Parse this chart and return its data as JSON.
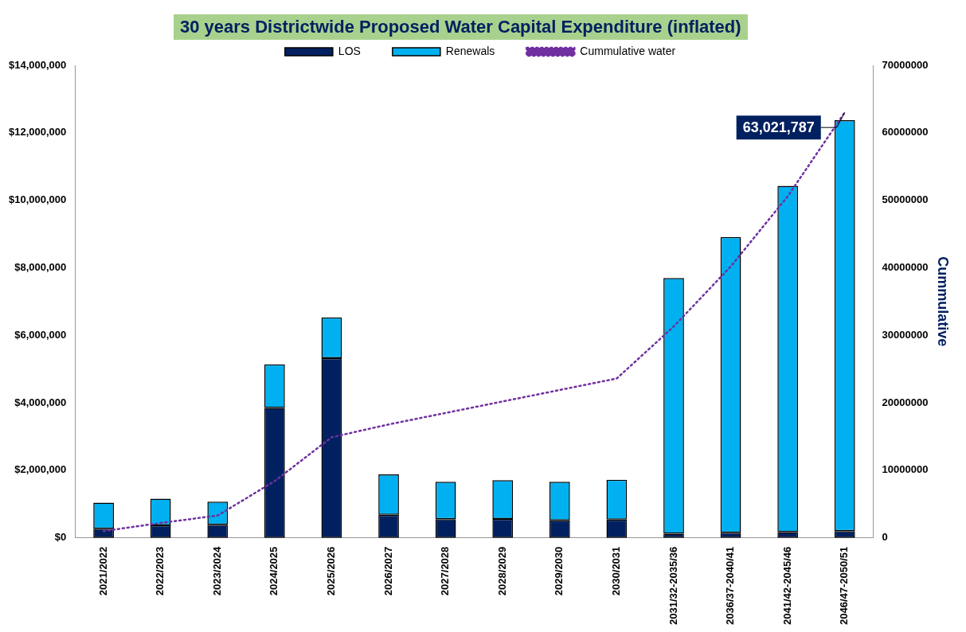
{
  "chart_data": {
    "type": "bar",
    "title": "30 years Districtwide Proposed Water Capital Expenditure (inflated)",
    "y2label": "Cummulative",
    "categories": [
      "2021/2022",
      "2022/2023",
      "2023/2024",
      "2024/2025",
      "2025/2026",
      "2026/2027",
      "2027/2028",
      "2028/2029",
      "2029/2030",
      "2030/2031",
      "2031/32-2035/36",
      "2036/37-2040/41",
      "2041/42-2045/46",
      "2046/47-2050/51"
    ],
    "stacked": true,
    "series": [
      {
        "name": "LOS",
        "color": "#002060",
        "values": [
          270000,
          370000,
          390000,
          3850000,
          5320000,
          680000,
          550000,
          560000,
          520000,
          540000,
          120000,
          150000,
          170000,
          200000
        ]
      },
      {
        "name": "Renewals",
        "color": "#00b0f0",
        "values": [
          770000,
          790000,
          680000,
          1290000,
          1210000,
          1200000,
          1110000,
          1150000,
          1140000,
          1180000,
          7580000,
          8760000,
          10260000,
          12170000
        ]
      },
      {
        "name": "Cummulative water",
        "type": "line",
        "axis": "y2",
        "color": "#7030a0",
        "line_style": "dotted",
        "marker": "none",
        "values": [
          1000000,
          2200000,
          3300000,
          8400000,
          14900000,
          16800000,
          18500000,
          20200000,
          21900000,
          23600000,
          31300000,
          40200000,
          50600000,
          63021787
        ],
        "value_labels": [
          null,
          null,
          null,
          null,
          null,
          null,
          null,
          null,
          null,
          null,
          null,
          null,
          null,
          "63,021,787"
        ]
      }
    ],
    "ylim": [
      0,
      14000000
    ],
    "yticks": [
      {
        "value": 0,
        "label": "$0"
      },
      {
        "value": 2000000,
        "label": "$2,000,000"
      },
      {
        "value": 4000000,
        "label": "$4,000,000"
      },
      {
        "value": 6000000,
        "label": "$6,000,000"
      },
      {
        "value": 8000000,
        "label": "$8,000,000"
      },
      {
        "value": 10000000,
        "label": "$10,000,000"
      },
      {
        "value": 12000000,
        "label": "$12,000,000"
      },
      {
        "value": 14000000,
        "label": "$14,000,000"
      }
    ],
    "y2lim": [
      0,
      70000000
    ],
    "y2ticks": [
      0,
      10000000,
      20000000,
      30000000,
      40000000,
      50000000,
      60000000,
      70000000
    ],
    "grid": false,
    "legend": "top"
  }
}
